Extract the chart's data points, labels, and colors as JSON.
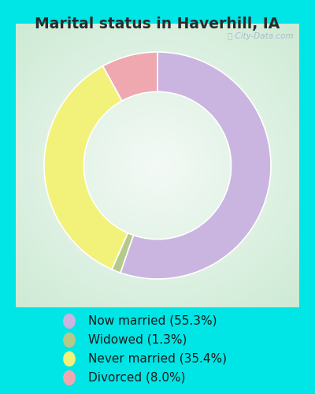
{
  "title": "Marital status in Haverhill, IA",
  "slices": [
    55.3,
    1.3,
    35.4,
    8.0
  ],
  "colors": [
    "#c9b5e0",
    "#b5c98a",
    "#f2f27a",
    "#f0a8b0"
  ],
  "labels": [
    "Now married (55.3%)",
    "Widowed (1.3%)",
    "Never married (35.4%)",
    "Divorced (8.0%)"
  ],
  "bg_cyan": "#00e5e5",
  "bg_chart_center": "#f0f8f0",
  "bg_chart_edge": "#c8e8d0",
  "title_fontsize": 13.5,
  "legend_fontsize": 11,
  "donut_width": 0.35,
  "startangle": 90,
  "watermark": "City-Data.com"
}
